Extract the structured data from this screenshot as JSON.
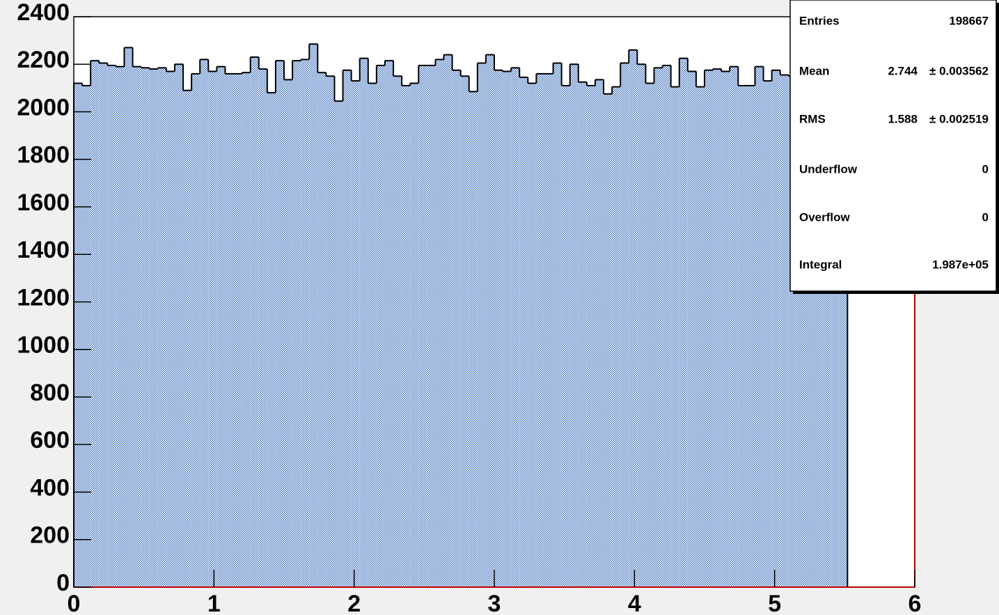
{
  "chart_data": {
    "type": "histogram",
    "bins": [
      0,
      0.06,
      0.12,
      0.18,
      0.24,
      0.3,
      0.36,
      0.42,
      0.48,
      0.54,
      0.6,
      0.66,
      0.72,
      0.78,
      0.84,
      0.9,
      0.96,
      1.02,
      1.08,
      1.14,
      1.2,
      1.26,
      1.32,
      1.38,
      1.44,
      1.5,
      1.56,
      1.62,
      1.68,
      1.74,
      1.8,
      1.86,
      1.92,
      1.98,
      2.04,
      2.1,
      2.16,
      2.22,
      2.28,
      2.34,
      2.4,
      2.46,
      2.52,
      2.58,
      2.64,
      2.7,
      2.76,
      2.82,
      2.88,
      2.94,
      3,
      3.06,
      3.12,
      3.18,
      3.24,
      3.3,
      3.36,
      3.42,
      3.48,
      3.54,
      3.6,
      3.66,
      3.72,
      3.78,
      3.84,
      3.9,
      3.96,
      4.02,
      4.08,
      4.14,
      4.2,
      4.26,
      4.32,
      4.38,
      4.44,
      4.5,
      4.56,
      4.62,
      4.68,
      4.74,
      4.8,
      4.86,
      4.92,
      4.98,
      5.04,
      5.1,
      5.16,
      5.22,
      5.28,
      5.34,
      5.4,
      5.46,
      5.52,
      5.58,
      5.64,
      5.7,
      5.76,
      5.82,
      5.88,
      5.94,
      6
    ],
    "counts": [
      2120,
      2110,
      2215,
      2205,
      2195,
      2190,
      2270,
      2190,
      2185,
      2180,
      2185,
      2170,
      2200,
      2090,
      2160,
      2220,
      2170,
      2190,
      2160,
      2160,
      2165,
      2230,
      2180,
      2080,
      2215,
      2135,
      2215,
      2220,
      2285,
      2165,
      2150,
      2045,
      2175,
      2130,
      2225,
      2120,
      2195,
      2215,
      2150,
      2110,
      2120,
      2195,
      2195,
      2220,
      2240,
      2175,
      2150,
      2085,
      2205,
      2240,
      2175,
      2170,
      2185,
      2145,
      2120,
      2160,
      2160,
      2205,
      2110,
      2200,
      2125,
      2110,
      2135,
      2075,
      2105,
      2205,
      2260,
      2200,
      2120,
      2185,
      2195,
      2105,
      2225,
      2170,
      2105,
      2175,
      2180,
      2170,
      2190,
      2110,
      2110,
      2190,
      2130,
      2175,
      2155,
      2150,
      2155,
      2170,
      2150,
      2180,
      2160,
      2170,
      0,
      0,
      0,
      0,
      0,
      0,
      0,
      0
    ],
    "color": "#4a78c0",
    "xlim": [
      0,
      6
    ],
    "xticks": [
      0,
      1,
      2,
      3,
      4,
      5,
      6
    ],
    "ylim": [
      0,
      2400
    ],
    "yticks": [
      0,
      200,
      400,
      600,
      800,
      1000,
      1200,
      1400,
      1600,
      1800,
      2000,
      2200,
      2400
    ],
    "stats": [
      {
        "label": "Entries",
        "value": "198667"
      },
      {
        "label": "Mean",
        "value": "2.744",
        "error": "± 0.003562"
      },
      {
        "label": "RMS",
        "value": "1.588",
        "error": "± 0.002519"
      },
      {
        "label": "Underflow",
        "value": "0"
      },
      {
        "label": "Overflow",
        "value": "0"
      },
      {
        "label": "Integral",
        "value": "1.987e+05"
      }
    ]
  }
}
